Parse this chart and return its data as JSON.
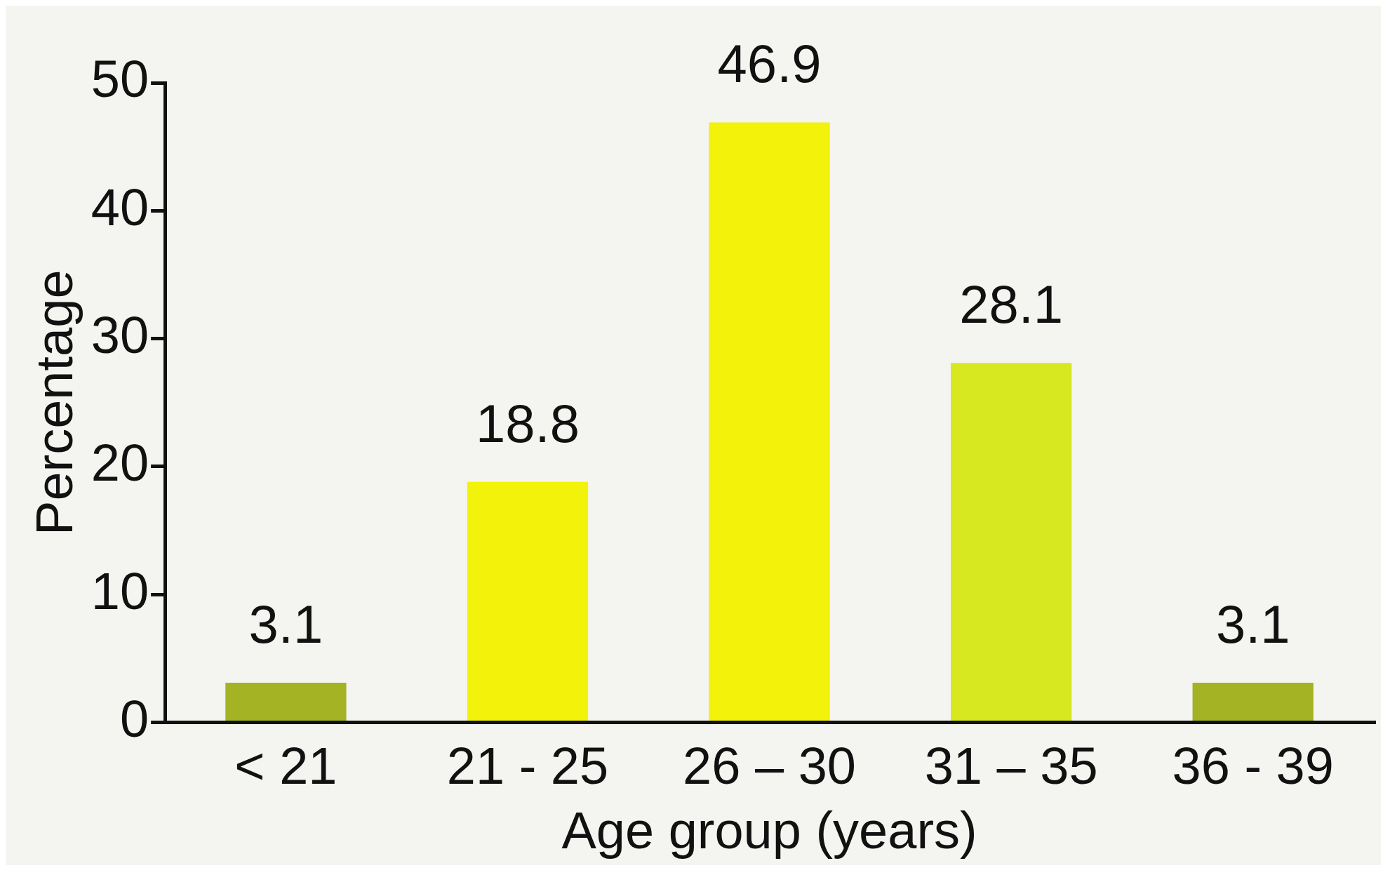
{
  "chart_data": {
    "type": "bar",
    "xlabel": "Age group (years)",
    "ylabel": "Percentage",
    "categories": [
      "< 21",
      "21 - 25",
      "26 – 30",
      "31 – 35",
      "36 - 39"
    ],
    "values": [
      3.1,
      18.8,
      46.9,
      28.1,
      3.1
    ],
    "colors": [
      "#a3b323",
      "#f2f20a",
      "#f2f20a",
      "#d8e820",
      "#a3b323"
    ],
    "ylim": [
      0,
      50
    ],
    "yticks": [
      0,
      10,
      20,
      30,
      40,
      50
    ],
    "grid": false,
    "legend": false,
    "data_labels": true
  }
}
